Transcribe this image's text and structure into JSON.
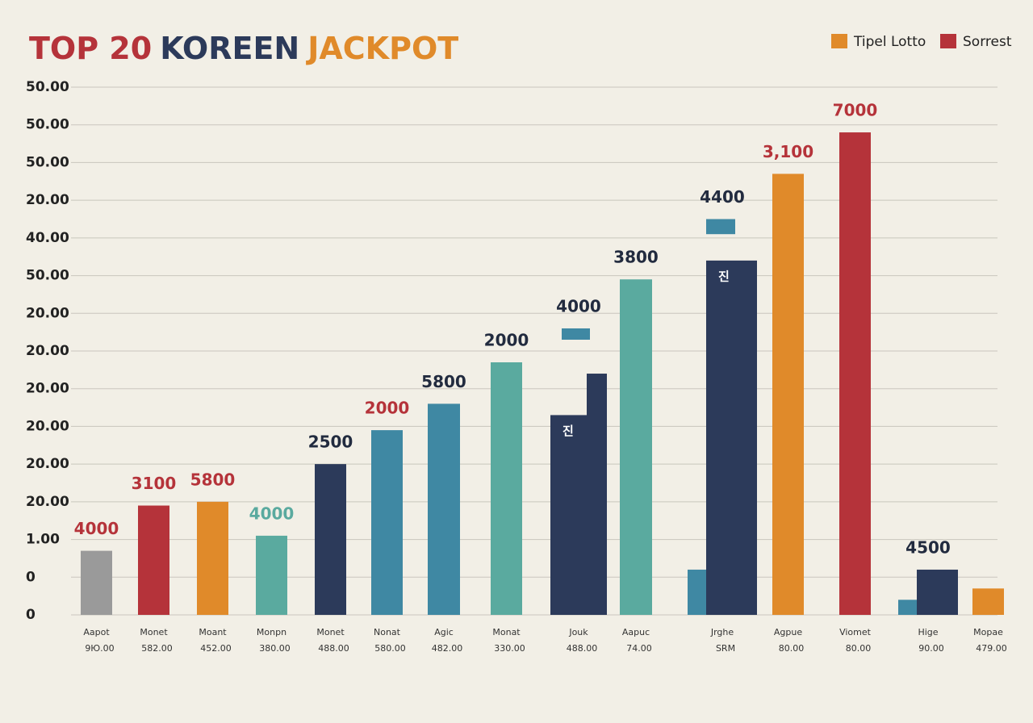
{
  "chart_data": {
    "type": "bar",
    "title_parts": [
      {
        "text": "TOP 20",
        "color": "#b5333a"
      },
      {
        "text": "KOREEN",
        "color": "#2c3a5a"
      },
      {
        "text": "JACKPOT",
        "color": "#e08a2a"
      }
    ],
    "legend": [
      {
        "name": "Tipel Lotto",
        "color": "#e08a2a"
      },
      {
        "name": "Sorrest",
        "color": "#b5333a"
      }
    ],
    "grid": true,
    "ylim": [
      0,
      14
    ],
    "yticks": [
      {
        "value": 0,
        "label": "0"
      },
      {
        "value": 1,
        "label": "0"
      },
      {
        "value": 2,
        "label": "1.00"
      },
      {
        "value": 3,
        "label": "20.00"
      },
      {
        "value": 4,
        "label": "20.00"
      },
      {
        "value": 5,
        "label": "20.00"
      },
      {
        "value": 6,
        "label": "20.00"
      },
      {
        "value": 7,
        "label": "20.00"
      },
      {
        "value": 8,
        "label": "20.00"
      },
      {
        "value": 9,
        "label": "50.00"
      },
      {
        "value": 10,
        "label": "40.00"
      },
      {
        "value": 11,
        "label": "20.00"
      },
      {
        "value": 12,
        "label": "50.00"
      },
      {
        "value": 13,
        "label": "50.00"
      },
      {
        "value": 14,
        "label": "50.00"
      }
    ],
    "bars": [
      {
        "category": "Aapot",
        "sublabel": "9Ю.00",
        "bar_label": "4000",
        "label_color": "#b5333a",
        "segments": [
          {
            "color": "#9a9a9a",
            "values": [
              1.7
            ]
          }
        ]
      },
      {
        "category": "Monet",
        "sublabel": "582.00",
        "bar_label": "3100",
        "label_color": "#b5333a",
        "segments": [
          {
            "color": "#b5333a",
            "values": [
              2.9
            ]
          }
        ]
      },
      {
        "category": "Moant",
        "sublabel": "452.00",
        "bar_label": "5800",
        "label_color": "#b5333a",
        "segments": [
          {
            "color": "#e08a2a",
            "values": [
              3.0
            ]
          }
        ]
      },
      {
        "category": "Monpn",
        "sublabel": "380.00",
        "bar_label": "4000",
        "label_color": "#5aaa9f",
        "segments": [
          {
            "color": "#5aaa9f",
            "values": [
              2.1
            ]
          }
        ]
      },
      {
        "category": "Monet",
        "sublabel": "488.00",
        "bar_label": "2500",
        "label_color": "#222b3f",
        "segments": [
          {
            "color": "#2c3a5a",
            "values": [
              4.0
            ]
          }
        ]
      },
      {
        "category": "Nonat",
        "sublabel": "580.00",
        "bar_label": "2000",
        "label_color": "#b5333a",
        "segments": [
          {
            "color": "#3f88a3",
            "values": [
              4.9
            ]
          }
        ]
      },
      {
        "category": "Agic",
        "sublabel": "482.00",
        "bar_label": "5800",
        "label_color": "#222b3f",
        "segments": [
          {
            "color": "#3f88a3",
            "values": [
              5.6
            ]
          }
        ]
      },
      {
        "category": "Monat",
        "sublabel": "330.00",
        "bar_label": "2000",
        "label_color": "#222b3f",
        "segments": [
          {
            "color": "#5aaa9f",
            "values": [
              6.7
            ]
          }
        ]
      },
      {
        "category": "Jouk",
        "sublabel": "488.00",
        "bar_label": "4000",
        "label_color": "#222b3f",
        "segments": [
          {
            "color": "#2c3a5a",
            "values": [
              5.3
            ],
            "inner_label": "진"
          },
          {
            "color": "#2c3a5a",
            "values": [
              6.4
            ]
          },
          {
            "color": "#3f88a3",
            "values": [
              7.3,
              7.6
            ]
          }
        ]
      },
      {
        "category": "Aapuc",
        "sublabel": "74.00",
        "bar_label": "3800",
        "label_color": "#222b3f",
        "segments": [
          {
            "color": "#5aaa9f",
            "values": [
              8.9
            ]
          }
        ]
      },
      {
        "category": "Jrghe",
        "sublabel": "SRM",
        "bar_label": "4400",
        "label_color": "#222b3f",
        "segments": [
          {
            "color": "#3f88a3",
            "values": [
              1.2
            ]
          },
          {
            "color": "#2c3a5a",
            "values": [
              9.4
            ],
            "inner_label": "진"
          },
          {
            "color": "#3f88a3",
            "values": [
              10.1,
              10.5
            ]
          }
        ]
      },
      {
        "category": "Agpue",
        "sublabel": "80.00",
        "bar_label": "3,100",
        "label_color": "#b5333a",
        "segments": [
          {
            "color": "#e08a2a",
            "values": [
              11.7
            ]
          }
        ]
      },
      {
        "category": "Viomet",
        "sublabel": "80.00",
        "bar_label": "7000",
        "label_color": "#b5333a",
        "segments": [
          {
            "color": "#b5333a",
            "values": [
              12.8
            ]
          }
        ]
      },
      {
        "category": "Hige",
        "sublabel": "90.00",
        "bar_label": "4500",
        "label_color": "#222b3f",
        "segments": [
          {
            "color": "#3f88a3",
            "values": [
              0.4
            ]
          },
          {
            "color": "#2c3a5a",
            "values": [
              1.2
            ]
          }
        ]
      },
      {
        "category": "Mopae",
        "sublabel": "479.00",
        "segments": [
          {
            "color": "#e08a2a",
            "values": [
              0.7
            ]
          }
        ]
      }
    ]
  }
}
